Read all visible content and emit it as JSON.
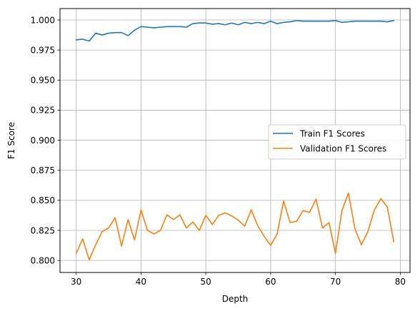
{
  "chart_data": {
    "type": "line",
    "xlabel": "Depth",
    "ylabel": "F1 Score",
    "xlim": [
      27.5,
      81.5
    ],
    "ylim": [
      0.79,
      1.0095
    ],
    "xticks": [
      30,
      40,
      50,
      60,
      70,
      80
    ],
    "xtick_labels": [
      "30",
      "40",
      "50",
      "60",
      "70",
      "80"
    ],
    "yticks": [
      0.8,
      0.825,
      0.85,
      0.875,
      0.9,
      0.925,
      0.95,
      0.975,
      1.0
    ],
    "ytick_labels": [
      "0.800",
      "0.825",
      "0.850",
      "0.875",
      "0.900",
      "0.925",
      "0.950",
      "0.975",
      "1.000"
    ],
    "grid": true,
    "legend_position": "center-right",
    "x": [
      30,
      31,
      32,
      33,
      34,
      35,
      36,
      37,
      38,
      39,
      40,
      41,
      42,
      43,
      44,
      45,
      46,
      47,
      48,
      49,
      50,
      51,
      52,
      53,
      54,
      55,
      56,
      57,
      58,
      59,
      60,
      61,
      62,
      63,
      64,
      65,
      66,
      67,
      68,
      69,
      70,
      71,
      72,
      73,
      74,
      75,
      76,
      77,
      78,
      79
    ],
    "series": [
      {
        "name": "Train F1 Scores",
        "color": "#1f77b4",
        "values": [
          0.9835,
          0.984,
          0.9825,
          0.989,
          0.9875,
          0.989,
          0.9895,
          0.9895,
          0.987,
          0.9915,
          0.9945,
          0.994,
          0.9935,
          0.994,
          0.9945,
          0.9945,
          0.9945,
          0.994,
          0.997,
          0.9975,
          0.9975,
          0.9965,
          0.997,
          0.996,
          0.9975,
          0.996,
          0.998,
          0.997,
          0.998,
          0.997,
          0.999,
          0.997,
          0.998,
          0.9985,
          0.9995,
          0.999,
          0.999,
          0.999,
          0.999,
          0.999,
          0.9995,
          0.998,
          0.9985,
          0.999,
          0.999,
          0.999,
          0.999,
          0.999,
          0.9985,
          0.9995
        ]
      },
      {
        "name": "Validation F1 Scores",
        "color": "#ff7f0e",
        "values": [
          0.806,
          0.818,
          0.8005,
          0.813,
          0.824,
          0.827,
          0.8355,
          0.812,
          0.834,
          0.817,
          0.842,
          0.825,
          0.822,
          0.825,
          0.838,
          0.834,
          0.838,
          0.827,
          0.832,
          0.825,
          0.8375,
          0.83,
          0.8375,
          0.8395,
          0.837,
          0.8335,
          0.8285,
          0.842,
          0.829,
          0.82,
          0.8125,
          0.822,
          0.8495,
          0.8315,
          0.8325,
          0.8415,
          0.84,
          0.851,
          0.827,
          0.8315,
          0.806,
          0.8415,
          0.856,
          0.8265,
          0.813,
          0.824,
          0.842,
          0.8515,
          0.8445,
          0.8155
        ]
      }
    ]
  }
}
